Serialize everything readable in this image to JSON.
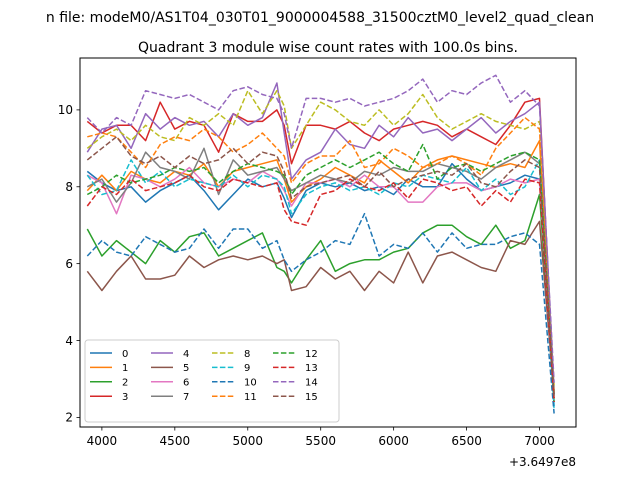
{
  "figure": {
    "suptitle": "n file: modeM0/AS1T04_030T01_9000004588_31500cztM0_level2_quad_clean",
    "offset_label": "+3.6497e8"
  },
  "chart_data": {
    "type": "line",
    "title": "Quadrant 3 module wise count rates with 100.0s bins.",
    "xlabel": "",
    "ylabel": "",
    "xlim": [
      3850,
      7250
    ],
    "ylim": [
      1.75,
      11.35
    ],
    "x_ticks": [
      4000,
      4500,
      5000,
      5500,
      6000,
      6500,
      7000
    ],
    "y_ticks": [
      2,
      4,
      6,
      8,
      10
    ],
    "x_offset": "+3.6497e8",
    "grid": false,
    "legend": {
      "placement": "lower-left",
      "columns": 4
    },
    "x": [
      3900,
      4000,
      4100,
      4200,
      4300,
      4400,
      4500,
      4600,
      4700,
      4800,
      4900,
      5000,
      5100,
      5200,
      5250,
      5300,
      5400,
      5500,
      5600,
      5700,
      5800,
      5900,
      6000,
      6100,
      6200,
      6300,
      6400,
      6500,
      6600,
      6700,
      6800,
      6900,
      7000,
      7100
    ],
    "series": [
      {
        "name": "0",
        "color": "#1f77b4",
        "dash": "solid",
        "values": [
          8.4,
          8.1,
          7.9,
          8.0,
          7.6,
          7.9,
          8.1,
          8.3,
          7.9,
          7.4,
          7.8,
          8.2,
          8.0,
          8.1,
          7.7,
          7.2,
          7.9,
          8.1,
          8.0,
          8.1,
          7.9,
          8.0,
          7.8,
          8.2,
          8.0,
          8.0,
          8.6,
          8.2,
          7.9,
          8.0,
          8.1,
          8.3,
          8.2,
          2.3
        ]
      },
      {
        "name": "1",
        "color": "#ff7f0e",
        "dash": "solid",
        "values": [
          7.9,
          8.3,
          7.9,
          8.4,
          8.2,
          8.1,
          8.4,
          8.3,
          8.6,
          8.0,
          8.4,
          8.5,
          8.6,
          8.7,
          8.2,
          7.6,
          8.0,
          8.2,
          8.5,
          8.3,
          8.1,
          8.7,
          8.4,
          8.1,
          8.5,
          8.7,
          8.8,
          8.7,
          8.6,
          8.5,
          8.6,
          8.5,
          9.2,
          2.5
        ]
      },
      {
        "name": "2",
        "color": "#2ca02c",
        "dash": "solid",
        "values": [
          6.9,
          6.2,
          6.6,
          6.3,
          6.0,
          6.6,
          6.3,
          6.7,
          6.8,
          6.2,
          6.4,
          6.6,
          6.8,
          5.9,
          5.8,
          5.5,
          6.1,
          6.6,
          5.8,
          6.0,
          6.1,
          6.1,
          6.3,
          6.4,
          6.8,
          7.0,
          7.0,
          6.7,
          6.5,
          7.0,
          6.4,
          6.6,
          7.8,
          2.4
        ]
      },
      {
        "name": "3",
        "color": "#d62728",
        "dash": "solid",
        "values": [
          9.7,
          9.4,
          9.6,
          9.6,
          9.2,
          10.2,
          9.5,
          9.7,
          9.6,
          8.9,
          9.9,
          9.7,
          9.7,
          10.0,
          9.6,
          8.6,
          9.6,
          9.6,
          9.5,
          9.7,
          9.4,
          9.2,
          9.5,
          9.6,
          9.7,
          9.6,
          9.3,
          9.5,
          9.3,
          9.1,
          9.6,
          10.2,
          10.3,
          2.6
        ]
      },
      {
        "name": "4",
        "color": "#9467bd",
        "dash": "solid",
        "values": [
          8.9,
          9.5,
          9.6,
          9.0,
          9.9,
          9.5,
          9.8,
          9.6,
          9.7,
          9.3,
          9.9,
          9.6,
          9.8,
          10.7,
          9.4,
          8.2,
          8.7,
          8.9,
          9.5,
          9.1,
          9.0,
          9.6,
          9.3,
          9.8,
          9.4,
          9.5,
          9.2,
          9.5,
          9.8,
          9.4,
          9.7,
          9.9,
          10.2,
          2.7
        ]
      },
      {
        "name": "5",
        "color": "#8c564b",
        "dash": "solid",
        "values": [
          5.8,
          5.3,
          5.8,
          6.2,
          5.6,
          5.6,
          5.7,
          6.2,
          5.9,
          6.1,
          6.2,
          6.1,
          6.2,
          6.0,
          6.1,
          5.3,
          5.4,
          5.9,
          5.6,
          5.8,
          5.3,
          5.8,
          5.5,
          6.3,
          5.5,
          6.2,
          6.3,
          6.1,
          5.9,
          5.8,
          6.6,
          6.5,
          7.1,
          2.6
        ]
      },
      {
        "name": "6",
        "color": "#e377c2",
        "dash": "solid",
        "values": [
          8.3,
          8.1,
          7.3,
          8.3,
          8.2,
          8.0,
          8.2,
          8.5,
          8.1,
          8.0,
          8.2,
          8.1,
          8.4,
          8.2,
          7.9,
          7.5,
          8.1,
          8.1,
          8.2,
          8.0,
          8.3,
          8.0,
          8.0,
          7.6,
          7.6,
          8.0,
          8.1,
          8.1,
          7.9,
          8.0,
          8.2,
          8.1,
          8.2,
          2.5
        ]
      },
      {
        "name": "7",
        "color": "#7f7f7f",
        "dash": "solid",
        "values": [
          8.0,
          8.2,
          7.6,
          8.1,
          8.9,
          8.5,
          8.4,
          8.2,
          9.0,
          7.8,
          8.7,
          8.3,
          8.4,
          8.5,
          8.2,
          7.9,
          8.1,
          8.3,
          8.2,
          8.1,
          8.4,
          8.3,
          8.5,
          8.4,
          8.4,
          8.6,
          8.5,
          8.4,
          8.2,
          8.5,
          8.7,
          8.9,
          8.6,
          2.6
        ]
      },
      {
        "name": "8",
        "color": "#bcbd22",
        "dash": "dash",
        "values": [
          9.0,
          9.3,
          9.5,
          9.2,
          9.6,
          9.3,
          9.2,
          9.8,
          9.6,
          9.9,
          9.6,
          10.5,
          9.9,
          10.5,
          10.1,
          9.0,
          9.6,
          10.2,
          10.0,
          9.7,
          9.6,
          10.0,
          9.6,
          9.9,
          10.4,
          9.8,
          9.5,
          9.7,
          9.9,
          9.7,
          9.6,
          9.5,
          9.7,
          2.8
        ]
      },
      {
        "name": "9",
        "color": "#17becf",
        "dash": "dash",
        "values": [
          8.3,
          7.8,
          7.9,
          8.7,
          8.1,
          8.4,
          8.0,
          8.2,
          8.1,
          8.0,
          8.3,
          8.0,
          8.3,
          8.2,
          8.0,
          7.3,
          7.8,
          8.0,
          8.1,
          7.9,
          8.0,
          7.8,
          8.1,
          8.0,
          8.3,
          8.2,
          8.1,
          8.5,
          7.9,
          8.2,
          7.8,
          8.0,
          8.7,
          2.2
        ]
      },
      {
        "name": "10",
        "color": "#1f77b4",
        "dash": "dash",
        "values": [
          6.2,
          6.6,
          6.3,
          6.2,
          6.7,
          6.5,
          6.3,
          6.4,
          6.9,
          6.4,
          6.9,
          6.9,
          6.4,
          6.6,
          6.1,
          5.8,
          6.1,
          6.3,
          6.6,
          6.5,
          7.3,
          6.2,
          6.5,
          6.4,
          6.8,
          6.3,
          6.8,
          6.4,
          6.5,
          6.5,
          6.7,
          6.8,
          6.5,
          2.1
        ]
      },
      {
        "name": "11",
        "color": "#ff7f0e",
        "dash": "dash",
        "values": [
          9.3,
          9.4,
          9.3,
          8.9,
          8.5,
          9.1,
          9.3,
          9.2,
          9.5,
          9.3,
          8.9,
          9.1,
          9.4,
          9.0,
          8.8,
          8.1,
          8.6,
          8.8,
          8.8,
          9.2,
          8.5,
          8.6,
          9.0,
          8.8,
          8.5,
          8.6,
          8.8,
          8.6,
          8.3,
          9.0,
          9.4,
          9.8,
          9.5,
          2.6
        ]
      },
      {
        "name": "12",
        "color": "#2ca02c",
        "dash": "dash",
        "values": [
          7.8,
          8.0,
          8.3,
          8.1,
          8.2,
          8.3,
          8.5,
          8.4,
          8.5,
          8.1,
          8.4,
          8.6,
          8.5,
          8.4,
          8.3,
          7.8,
          8.3,
          8.5,
          8.7,
          8.5,
          8.7,
          8.9,
          8.6,
          8.4,
          9.1,
          8.2,
          8.5,
          8.6,
          8.4,
          8.6,
          8.8,
          8.9,
          8.7,
          2.5
        ]
      },
      {
        "name": "13",
        "color": "#d62728",
        "dash": "dash",
        "values": [
          7.5,
          8.0,
          7.8,
          8.2,
          7.9,
          8.0,
          8.1,
          8.3,
          8.0,
          7.9,
          8.2,
          8.1,
          8.0,
          8.1,
          7.4,
          7.1,
          7.0,
          7.8,
          7.9,
          8.2,
          8.0,
          7.9,
          8.1,
          7.7,
          8.2,
          8.1,
          7.9,
          8.0,
          7.5,
          7.9,
          7.6,
          8.2,
          8.1,
          2.4
        ]
      },
      {
        "name": "14",
        "color": "#9467bd",
        "dash": "dash",
        "values": [
          9.8,
          9.4,
          9.8,
          9.6,
          10.5,
          10.4,
          10.3,
          10.4,
          10.2,
          10.0,
          10.5,
          10.6,
          10.4,
          10.3,
          9.9,
          9.0,
          10.3,
          10.3,
          10.2,
          10.3,
          10.1,
          10.2,
          10.3,
          10.5,
          10.8,
          10.2,
          10.5,
          10.4,
          10.7,
          10.9,
          10.2,
          10.5,
          10.1,
          2.9
        ]
      },
      {
        "name": "15",
        "color": "#8c564b",
        "dash": "dash",
        "values": [
          8.7,
          9.0,
          9.3,
          8.8,
          8.6,
          8.8,
          8.5,
          8.8,
          8.6,
          8.7,
          9.0,
          8.6,
          8.9,
          8.8,
          8.4,
          7.7,
          8.0,
          8.1,
          8.2,
          8.3,
          8.0,
          8.4,
          8.0,
          8.2,
          8.3,
          8.4,
          8.3,
          8.6,
          8.1,
          8.0,
          8.4,
          8.7,
          8.5,
          2.5
        ]
      }
    ]
  }
}
